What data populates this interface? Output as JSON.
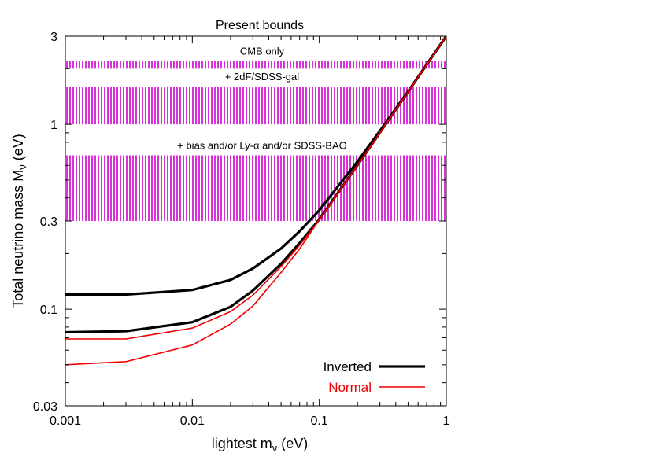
{
  "chart_data": {
    "type": "line",
    "title": "Present bounds",
    "xlabel": "lightest m",
    "xlabel_sub": "ν",
    "xlabel_unit": " (eV)",
    "ylabel": "Total neutrino mass M",
    "ylabel_sub": "ν",
    "ylabel_unit": " (eV)",
    "x_scale": "log",
    "y_scale": "log",
    "xlim": [
      0.001,
      1
    ],
    "ylim": [
      0.03,
      3
    ],
    "x_ticks": [
      {
        "value": 0.001,
        "label": "0.001"
      },
      {
        "value": 0.01,
        "label": "0.01"
      },
      {
        "value": 0.1,
        "label": "0.1"
      },
      {
        "value": 1,
        "label": "1"
      }
    ],
    "y_ticks": [
      {
        "value": 0.03,
        "label": "0.03"
      },
      {
        "value": 0.1,
        "label": "0.1"
      },
      {
        "value": 0.3,
        "label": "0.3"
      },
      {
        "value": 1,
        "label": "1"
      },
      {
        "value": 3,
        "label": "3"
      }
    ],
    "bands": [
      {
        "label": "CMB only",
        "ymin": 2.0,
        "ymax": 2.2,
        "color": "#cc00cc"
      },
      {
        "label": "+ 2dF/SDSS-gal",
        "ymin": 1.0,
        "ymax": 1.6,
        "color": "#cc00cc"
      },
      {
        "label": "+ bias and/or Ly-α and/or SDSS-BAO",
        "ymin": 0.3,
        "ymax": 0.68,
        "color": "#cc00cc"
      }
    ],
    "series": [
      {
        "name": "Inverted",
        "color": "#000000",
        "curves": [
          {
            "x": [
              0.001,
              0.003,
              0.01,
              0.02,
              0.03,
              0.05,
              0.07,
              0.1,
              0.2,
              0.3,
              0.5,
              0.7,
              1.0
            ],
            "y": [
              0.12,
              0.12,
              0.127,
              0.144,
              0.166,
              0.213,
              0.264,
              0.343,
              0.63,
              0.922,
              1.507,
              2.105,
              3.002
            ]
          },
          {
            "x": [
              0.001,
              0.003,
              0.01,
              0.02,
              0.03,
              0.05,
              0.07,
              0.1,
              0.2,
              0.3,
              0.5,
              0.7,
              1.0
            ],
            "y": [
              0.075,
              0.076,
              0.085,
              0.103,
              0.126,
              0.176,
              0.228,
              0.306,
              0.602,
              0.902,
              1.501,
              2.101,
              3.001
            ]
          }
        ]
      },
      {
        "name": "Normal",
        "color": "#ee0000",
        "curves": [
          {
            "x": [
              0.001,
              0.003,
              0.01,
              0.02,
              0.03,
              0.05,
              0.07,
              0.1,
              0.2,
              0.3,
              0.5,
              0.7,
              1.0
            ],
            "y": [
              0.069,
              0.069,
              0.079,
              0.097,
              0.119,
              0.17,
              0.222,
              0.304,
              0.601,
              0.901,
              1.501,
              2.101,
              3.001
            ]
          },
          {
            "x": [
              0.001,
              0.003,
              0.01,
              0.02,
              0.03,
              0.05,
              0.07,
              0.1,
              0.2,
              0.3,
              0.5,
              0.7,
              1.0
            ],
            "y": [
              0.05,
              0.052,
              0.064,
              0.083,
              0.104,
              0.158,
              0.212,
              0.305,
              0.6,
              0.901,
              1.5,
              2.1,
              3.0
            ]
          }
        ]
      }
    ],
    "legend": {
      "placement": "bottom-right"
    },
    "grid": false
  }
}
